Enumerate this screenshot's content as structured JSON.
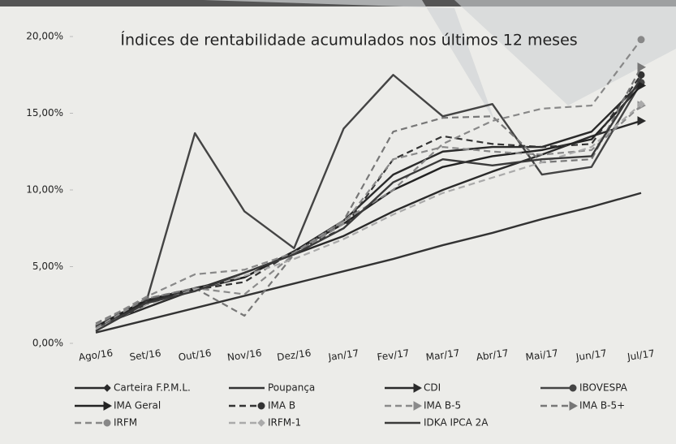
{
  "chart_data": {
    "type": "line",
    "title": "Índices de rentabilidade acumulados nos últimos 12 meses",
    "categories": [
      "Ago/16",
      "Set/16",
      "Out/16",
      "Nov/16",
      "Dez/16",
      "Jan/17",
      "Fev/17",
      "Mar/17",
      "Abr/17",
      "Mai/17",
      "Jun/17",
      "Jul/17"
    ],
    "ylim": [
      0,
      20
    ],
    "yticks": [
      {
        "value": 0,
        "label": "0,00%"
      },
      {
        "value": 5,
        "label": "5,00%"
      },
      {
        "value": 10,
        "label": "10,00%"
      },
      {
        "value": 15,
        "label": "15,00%"
      },
      {
        "value": 20,
        "label": "20,00%"
      }
    ],
    "grid": false,
    "series": [
      {
        "name": "Carteira F.P.M.L.",
        "color": "#2a2a2a",
        "dash": false,
        "marker": "diamond",
        "values": [
          1.0,
          2.7,
          3.5,
          4.3,
          6.0,
          8.0,
          11.0,
          12.5,
          12.8,
          12.8,
          13.8,
          17.0
        ]
      },
      {
        "name": "Poupança",
        "color": "#333333",
        "dash": false,
        "marker": "none",
        "values": [
          0.7,
          1.5,
          2.3,
          3.1,
          3.9,
          4.7,
          5.5,
          6.4,
          7.2,
          8.1,
          8.9,
          9.8
        ]
      },
      {
        "name": "CDI",
        "color": "#2a2a2a",
        "dash": false,
        "marker": "arrow",
        "values": [
          1.1,
          2.3,
          3.5,
          4.6,
          5.8,
          7.0,
          8.6,
          10.0,
          11.2,
          12.3,
          13.5,
          14.5
        ]
      },
      {
        "name": "IBOVESPA",
        "color": "#444444",
        "dash": false,
        "marker": "dot",
        "values": [
          1.0,
          2.5,
          13.7,
          8.6,
          6.2,
          14.0,
          17.5,
          14.8,
          15.6,
          11.0,
          11.5,
          17.0
        ]
      },
      {
        "name": "IMA Geral",
        "color": "#222222",
        "dash": false,
        "marker": "arrow",
        "values": [
          1.1,
          2.8,
          3.6,
          4.3,
          6.0,
          7.8,
          10.0,
          11.5,
          12.2,
          12.6,
          13.3,
          16.8
        ]
      },
      {
        "name": "IMA B",
        "color": "#333333",
        "dash": true,
        "marker": "dot",
        "values": [
          1.2,
          2.8,
          3.5,
          4.0,
          6.0,
          7.5,
          12.0,
          13.5,
          13.0,
          12.8,
          13.0,
          17.5
        ]
      },
      {
        "name": "IMA B-5",
        "color": "#8a8a8a",
        "dash": true,
        "marker": "arrow",
        "values": [
          1.0,
          2.9,
          3.6,
          3.2,
          5.8,
          7.8,
          12.0,
          12.8,
          12.5,
          12.3,
          12.6,
          15.5
        ]
      },
      {
        "name": "IMA B-5+",
        "color": "#777777",
        "dash": true,
        "marker": "arrow",
        "values": [
          1.3,
          2.9,
          3.6,
          1.8,
          5.8,
          8.0,
          13.8,
          14.7,
          14.8,
          11.8,
          12.0,
          18.0
        ]
      },
      {
        "name": "IRFM",
        "color": "#888888",
        "dash": true,
        "marker": "dot",
        "values": [
          1.2,
          3.0,
          4.5,
          4.8,
          5.9,
          8.0,
          10.0,
          13.0,
          14.5,
          15.3,
          15.5,
          19.8
        ]
      },
      {
        "name": "IRFM-1",
        "color": "#aaaaaa",
        "dash": true,
        "marker": "diamond",
        "values": [
          0.9,
          2.5,
          3.5,
          4.4,
          5.5,
          6.8,
          8.4,
          9.8,
          10.8,
          11.8,
          12.8,
          15.6
        ]
      },
      {
        "name": "IDKA IPCA 2A",
        "color": "#3a3a3a",
        "dash": false,
        "marker": "none",
        "values": [
          0.8,
          2.6,
          3.4,
          4.6,
          5.8,
          7.5,
          10.5,
          12.0,
          11.6,
          12.0,
          12.2,
          17.3
        ]
      }
    ]
  }
}
